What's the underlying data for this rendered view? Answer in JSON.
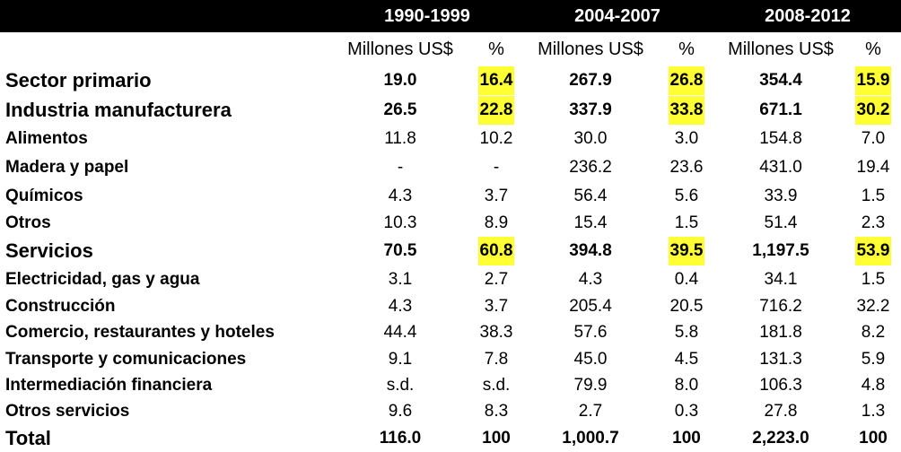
{
  "highlight_color": "#ffff33",
  "header": {
    "periods": [
      "1990-1999",
      "2004-2007",
      "2008-2012"
    ],
    "subheaders": [
      "Millones US$",
      "%",
      "Millones US$",
      "%",
      "Millones US$",
      "%"
    ]
  },
  "rows": [
    {
      "label": "Sector primario",
      "values": [
        "19.0",
        "16.4",
        "267.9",
        "26.8",
        "354.4",
        "15.9"
      ],
      "major": true
    },
    {
      "label": "Industria manufacturera",
      "values": [
        "26.5",
        "22.8",
        "337.9",
        "33.8",
        "671.1",
        "30.2"
      ],
      "major": true
    },
    {
      "label": "Alimentos",
      "values": [
        "11.8",
        "10.2",
        "30.0",
        "3.0",
        "154.8",
        "7.0"
      ],
      "major": false
    },
    {
      "label": "Madera y papel",
      "values": [
        "-",
        "-",
        "236.2",
        "23.6",
        "431.0",
        "19.4"
      ],
      "major": false
    },
    {
      "label": "Químicos",
      "values": [
        "4.3",
        "3.7",
        "56.4",
        "5.6",
        "33.9",
        "1.5"
      ],
      "major": false
    },
    {
      "label": "Otros",
      "values": [
        "10.3",
        "8.9",
        "15.4",
        "1.5",
        "51.4",
        "2.3"
      ],
      "major": false
    },
    {
      "label": "Servicios",
      "values": [
        "70.5",
        "60.8",
        "394.8",
        "39.5",
        "1,197.5",
        "53.9"
      ],
      "major": true
    },
    {
      "label": "Electricidad, gas y agua",
      "values": [
        "3.1",
        "2.7",
        "4.3",
        "0.4",
        "34.1",
        "1.5"
      ],
      "major": false
    },
    {
      "label": "Construcción",
      "values": [
        "4.3",
        "3.7",
        "205.4",
        "20.5",
        "716.2",
        "32.2"
      ],
      "major": false
    },
    {
      "label": "Comercio, restaurantes y hoteles",
      "values": [
        "44.4",
        "38.3",
        "57.6",
        "5.8",
        "181.8",
        "8.2"
      ],
      "major": false
    },
    {
      "label": "Transporte y comunicaciones",
      "values": [
        "9.1",
        "7.8",
        "45.0",
        "4.5",
        "131.3",
        "5.9"
      ],
      "major": false
    },
    {
      "label": "Intermediación financiera",
      "values": [
        "s.d.",
        "s.d.",
        "79.9",
        "8.0",
        "106.3",
        "4.8"
      ],
      "major": false
    },
    {
      "label": "Otros servicios",
      "values": [
        "9.6",
        "8.3",
        "2.7",
        "0.3",
        "27.8",
        "1.3"
      ],
      "major": false
    },
    {
      "label": "Total",
      "values": [
        "116.0",
        "100",
        "1,000.7",
        "100",
        "2,223.0",
        "100"
      ],
      "major": true,
      "total": true
    }
  ]
}
